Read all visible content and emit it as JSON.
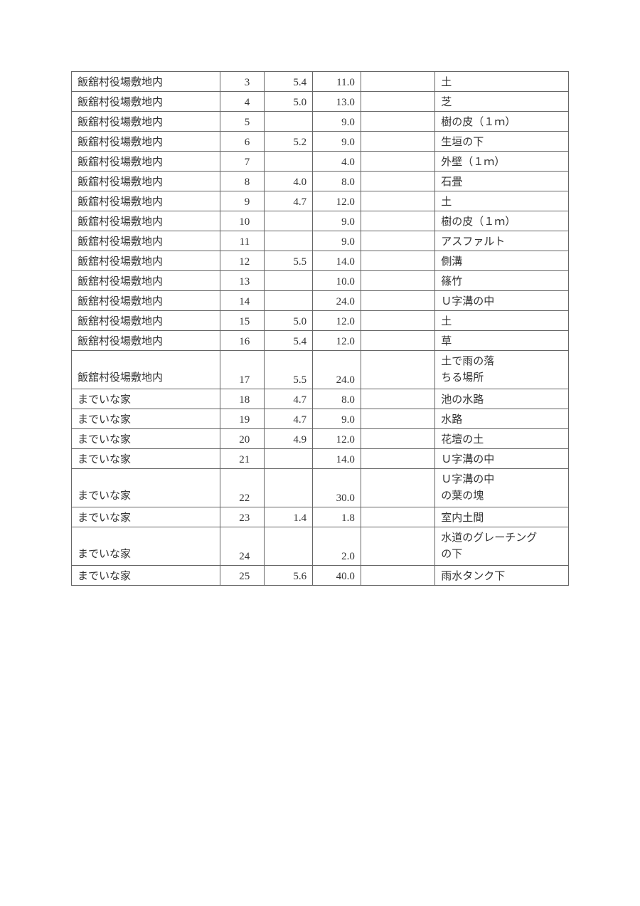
{
  "table": {
    "columns": {
      "location_width": 200,
      "num_width": 60,
      "val1_width": 65,
      "val2_width": 65,
      "blank_width": 100,
      "note_width": 180
    },
    "border_color": "#666666",
    "text_color": "#333333",
    "font_size": 15,
    "rows": [
      {
        "location": "飯舘村役場敷地内",
        "num": "3",
        "val1": "5.4",
        "val2": "11.0",
        "note": "土"
      },
      {
        "location": "飯舘村役場敷地内",
        "num": "4",
        "val1": "5.0",
        "val2": "13.0",
        "note": "芝"
      },
      {
        "location": "飯舘村役場敷地内",
        "num": "5",
        "val1": "",
        "val2": "9.0",
        "note": "樹の皮（１ｍ）"
      },
      {
        "location": "飯舘村役場敷地内",
        "num": "6",
        "val1": "5.2",
        "val2": "9.0",
        "note": "生垣の下"
      },
      {
        "location": "飯舘村役場敷地内",
        "num": "7",
        "val1": "",
        "val2": "4.0",
        "note": "外壁（１ｍ）"
      },
      {
        "location": "飯舘村役場敷地内",
        "num": "8",
        "val1": "4.0",
        "val2": "8.0",
        "note": "石畳"
      },
      {
        "location": "飯舘村役場敷地内",
        "num": "9",
        "val1": "4.7",
        "val2": "12.0",
        "note": "土"
      },
      {
        "location": "飯舘村役場敷地内",
        "num": "10",
        "val1": "",
        "val2": "9.0",
        "note": "樹の皮（１ｍ）"
      },
      {
        "location": "飯舘村役場敷地内",
        "num": "11",
        "val1": "",
        "val2": "9.0",
        "note": "アスファルト"
      },
      {
        "location": "飯舘村役場敷地内",
        "num": "12",
        "val1": "5.5",
        "val2": "14.0",
        "note": "側溝"
      },
      {
        "location": "飯舘村役場敷地内",
        "num": "13",
        "val1": "",
        "val2": "10.0",
        "note": "篠竹"
      },
      {
        "location": "飯舘村役場敷地内",
        "num": "14",
        "val1": "",
        "val2": "24.0",
        "note": "Ｕ字溝の中"
      },
      {
        "location": "飯舘村役場敷地内",
        "num": "15",
        "val1": "5.0",
        "val2": "12.0",
        "note": "土"
      },
      {
        "location": "飯舘村役場敷地内",
        "num": "16",
        "val1": "5.4",
        "val2": "12.0",
        "note": "草"
      },
      {
        "location": "飯舘村役場敷地内",
        "num": "17",
        "val1": "5.5",
        "val2": "24.0",
        "note": "土で雨の落\nちる場所",
        "multiline": true
      },
      {
        "location": "までいな家",
        "num": "18",
        "val1": "4.7",
        "val2": "8.0",
        "note": "池の水路"
      },
      {
        "location": "までいな家",
        "num": "19",
        "val1": "4.7",
        "val2": "9.0",
        "note": "水路"
      },
      {
        "location": "までいな家",
        "num": "20",
        "val1": "4.9",
        "val2": "12.0",
        "note": "花壇の土"
      },
      {
        "location": "までいな家",
        "num": "21",
        "val1": "",
        "val2": "14.0",
        "note": "Ｕ字溝の中"
      },
      {
        "location": "までいな家",
        "num": "22",
        "val1": "",
        "val2": "30.0",
        "note": "Ｕ字溝の中\nの葉の塊",
        "multiline": true
      },
      {
        "location": "までいな家",
        "num": "23",
        "val1": "1.4",
        "val2": "1.8",
        "note": "室内土間"
      },
      {
        "location": "までいな家",
        "num": "24",
        "val1": "",
        "val2": "2.0",
        "note": "水道のグレーチング\nの下",
        "multiline": true
      },
      {
        "location": "までいな家",
        "num": "25",
        "val1": "5.6",
        "val2": "40.0",
        "note": "雨水タンク下"
      }
    ]
  }
}
